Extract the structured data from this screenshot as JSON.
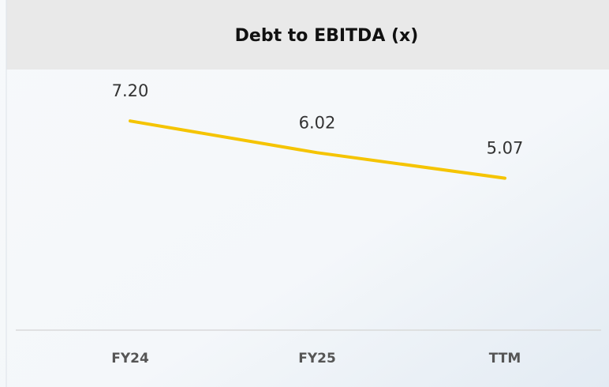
{
  "chart_data": {
    "type": "line",
    "title": "Debt to EBITDA (x)",
    "categories": [
      "FY24",
      "FY25",
      "TTM"
    ],
    "series": [
      {
        "name": null,
        "color": "#f5c400",
        "values": [
          7.2,
          6.02,
          5.07
        ],
        "value_labels": [
          "7.20",
          "6.02",
          "5.07"
        ]
      }
    ],
    "ylim": [
      0,
      9
    ]
  }
}
